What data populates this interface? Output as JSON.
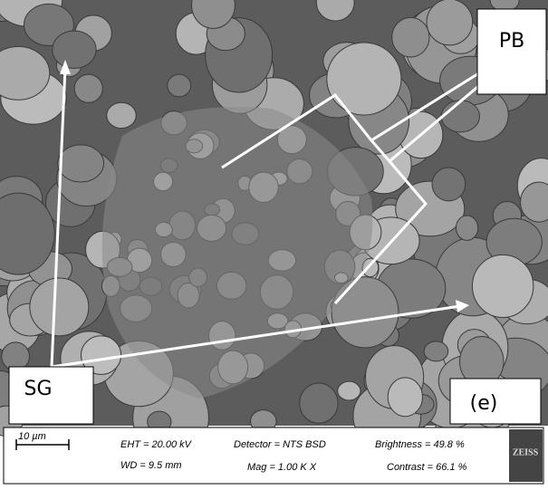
{
  "labels": {
    "pb": "PB",
    "sg": "SG",
    "panel": "(e)"
  },
  "info_bar": {
    "scale": "10 µm",
    "eht": "EHT = 20.00 kV",
    "wd": "WD =  9.5 mm",
    "detector": "Detector = NTS BSD",
    "mag": "Mag =    1.00 K X",
    "brightness": "Brightness = 49.8 %",
    "contrast": "Contrast = 66.1 %",
    "logo": "ZEISS"
  }
}
